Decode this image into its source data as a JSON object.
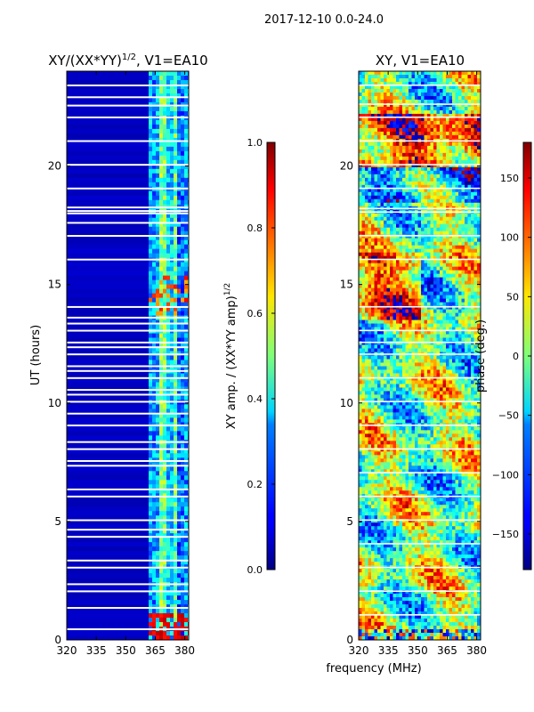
{
  "suptitle": "2017-12-10 0.0-24.0",
  "colors": {
    "background": "#ffffff",
    "axis": "#000000",
    "gap": "#ffffff"
  },
  "chart_data": [
    {
      "id": "amp",
      "type": "heatmap",
      "title": "XY/(XX*YY)",
      "title_sup": "1/2",
      "title_suffix": ", V1=EA10",
      "xlabel": "",
      "ylabel": "UT (hours)",
      "xlim": [
        320,
        382
      ],
      "ylim": [
        0,
        24
      ],
      "xticks": [
        320,
        335,
        350,
        365,
        380
      ],
      "yticks": [
        0,
        5,
        10,
        15,
        20
      ],
      "colorbar": {
        "label": "XY amp. / (XX*YY amp)",
        "label_sup": "1/2",
        "range": [
          0.0,
          1.0
        ],
        "ticks": [
          "0.0",
          "0.2",
          "0.4",
          "0.6",
          "0.8",
          "1.0"
        ],
        "colormap": "jet"
      },
      "band_edge_mhz": 362,
      "low_freq_level": 0.05,
      "high_freq_level_typical": 0.35,
      "gap_hours": [
        0.45,
        1.35,
        2.05,
        2.35,
        3.05,
        3.35,
        4.35,
        4.65,
        5.05,
        6.05,
        6.35,
        7.35,
        7.55,
        8.05,
        8.35,
        9.05,
        9.55,
        10.05,
        10.35,
        10.55,
        11.05,
        11.35,
        11.55,
        12.05,
        12.35,
        12.55,
        13.05,
        13.35,
        13.6,
        14.05,
        16.05,
        17.05,
        17.6,
        18.0,
        18.1,
        18.25,
        19.05,
        20.05,
        21.05,
        22.05,
        22.55,
        22.9,
        23.4
      ]
    },
    {
      "id": "phase",
      "type": "heatmap",
      "title": "XY, V1=EA10",
      "xlabel": "frequency (MHz)",
      "ylabel": "",
      "xlim": [
        320,
        382
      ],
      "ylim": [
        0,
        24
      ],
      "xticks": [
        320,
        335,
        350,
        365,
        380
      ],
      "yticks": [
        0,
        5,
        10,
        15,
        20
      ],
      "colorbar": {
        "label": "phase (deg.)",
        "range": [
          -180,
          180
        ],
        "ticks": [
          "−150",
          "−100",
          "−50",
          "0",
          "50",
          "100",
          "150"
        ],
        "tick_values": [
          -150,
          -100,
          -50,
          0,
          50,
          100,
          150
        ],
        "colormap": "jet"
      },
      "gap_hours": [
        1.05,
        2.05,
        3.05,
        4.05,
        5.05,
        6.05,
        7.05,
        8.05,
        9.05,
        10.05,
        11.05,
        12.05,
        12.55,
        13.05,
        14.05,
        16.05,
        17.05,
        18.05,
        18.2,
        19.05,
        20.05,
        21.05,
        22.05,
        22.6,
        23.4
      ]
    }
  ]
}
